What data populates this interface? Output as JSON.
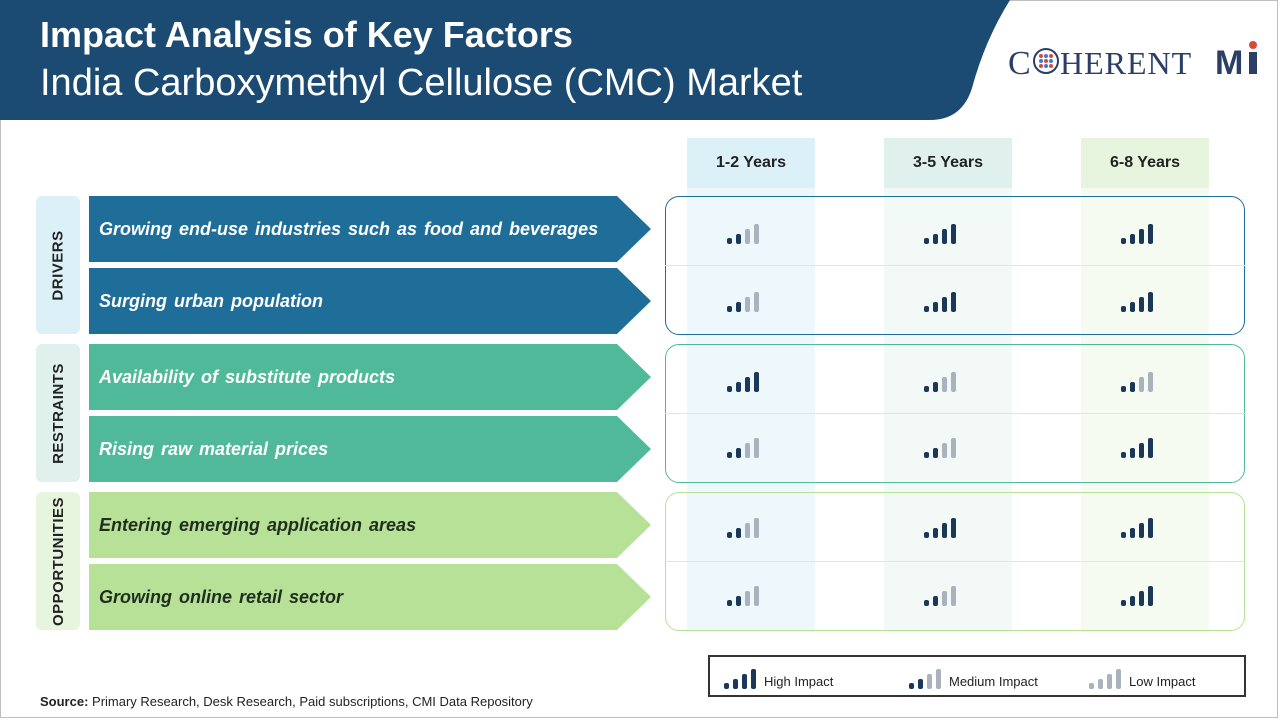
{
  "header": {
    "title": "Impact Analysis of Key Factors",
    "subtitle": "India Carboxymethyl Cellulose (CMC) Market"
  },
  "logo": {
    "text_left": "C",
    "text_mid": "HERENT",
    "text_right": "M",
    "text_i": "i"
  },
  "columns": [
    "1-2 Years",
    "3-5 Years",
    "6-8 Years"
  ],
  "groups": [
    {
      "label": "DRIVERS",
      "factors": [
        {
          "text": "Growing end-use industries such as food and beverages",
          "impacts": [
            "medium",
            "high",
            "high"
          ]
        },
        {
          "text": "Surging urban population",
          "impacts": [
            "medium",
            "high",
            "high"
          ]
        }
      ]
    },
    {
      "label": "RESTRAINTS",
      "factors": [
        {
          "text": "Availability of substitute products",
          "impacts": [
            "high",
            "medium",
            "medium"
          ]
        },
        {
          "text": "Rising raw material prices",
          "impacts": [
            "medium",
            "medium",
            "high"
          ]
        }
      ]
    },
    {
      "label": "OPPORTUNITIES",
      "factors": [
        {
          "text": "Entering emerging application areas",
          "impacts": [
            "medium",
            "high",
            "high"
          ]
        },
        {
          "text": "Growing online retail sector",
          "impacts": [
            "medium",
            "medium",
            "high"
          ]
        }
      ]
    }
  ],
  "legend": {
    "high": "High Impact",
    "medium": "Medium Impact",
    "low": "Low Impact"
  },
  "source": {
    "label": "Source:",
    "text": " Primary Research, Desk Research, Paid subscriptions, CMI Data Repository"
  },
  "colors": {
    "header": "#1b4a72",
    "drivers": "#1f6e9a",
    "restraints": "#50b99a",
    "opportunities": "#b7e197",
    "bar_dark": "#1b3858",
    "bar_light": "#a9b2bd"
  }
}
